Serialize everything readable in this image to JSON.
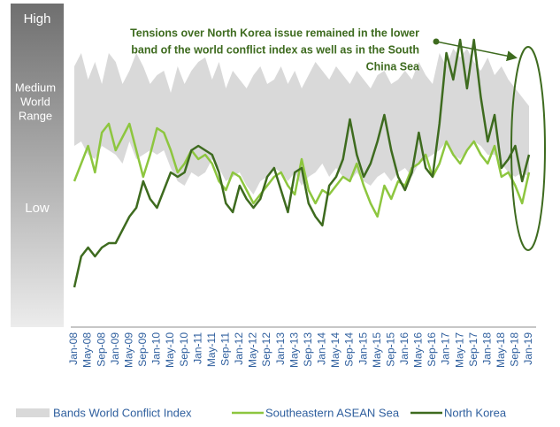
{
  "chart_data": {
    "type": "line",
    "annotation": [
      "Tensions over North Korea issue remained in the lower",
      "band of the world conflict index as well as in the South",
      "China Sea"
    ],
    "range_labels": {
      "high": "High",
      "medium": [
        "Medium",
        "World",
        "Range"
      ],
      "low": "Low"
    },
    "ylim": [
      0,
      350
    ],
    "categories": [
      "Jan-08",
      null,
      "May-08",
      null,
      "Sep-08",
      null,
      "Jan-09",
      null,
      "May-09",
      null,
      "Sep-09",
      null,
      "Jan-10",
      null,
      "May-10",
      null,
      "Sep-10",
      null,
      "Jan-11",
      null,
      "May-11",
      null,
      "Sep-11",
      null,
      "Jan-12",
      null,
      "May-12",
      null,
      "Sep-12",
      null,
      "Jan-13",
      null,
      "May-13",
      null,
      "Sep-13",
      null,
      "Jan-14",
      null,
      "May-14",
      null,
      "Sep-14",
      null,
      "Jan-15",
      null,
      "May-15",
      null,
      "Sep-15",
      null,
      "Jan-16",
      null,
      "May-16",
      null,
      "Sep-16",
      null,
      "Jan-17",
      null,
      "May-17",
      null,
      "Sep-17",
      null,
      "Jan-18",
      null,
      "May-18",
      null,
      "Sep-18",
      null,
      "Jan-19"
    ],
    "series": [
      {
        "name": "Bands World Conflict Index",
        "color": "#d9d9d9",
        "kind": "band",
        "values": [
          295,
          310,
          280,
          300,
          275,
          310,
          300,
          275,
          290,
          310,
          295,
          275,
          285,
          290,
          265,
          295,
          275,
          290,
          300,
          305,
          280,
          300,
          270,
          290,
          280,
          270,
          285,
          295,
          275,
          280,
          295,
          275,
          290,
          270,
          285,
          300,
          290,
          280,
          295,
          285,
          275,
          290,
          280,
          270,
          285,
          290,
          275,
          280,
          290,
          280,
          300,
          285,
          275,
          310,
          295,
          315,
          305,
          315,
          300,
          290,
          305,
          285,
          295,
          280,
          270,
          260,
          250
        ],
        "lower": [
          205,
          210,
          195,
          190,
          205,
          200,
          195,
          185,
          210,
          190,
          195,
          200,
          195,
          200,
          180,
          165,
          160,
          175,
          170,
          175,
          190,
          180,
          165,
          170,
          175,
          160,
          150,
          165,
          170,
          180,
          175,
          165,
          175,
          160,
          170,
          175,
          185,
          170,
          180,
          170,
          165,
          175,
          165,
          160,
          170,
          175,
          165,
          175,
          180,
          170,
          185,
          190,
          195,
          200,
          210,
          195,
          190,
          200,
          210,
          205,
          195,
          195,
          185,
          175,
          170,
          175,
          170
        ]
      },
      {
        "name": "Southeastern ASEAN Sea",
        "color": "#8dc63f",
        "values": [
          165,
          185,
          205,
          175,
          220,
          230,
          200,
          215,
          230,
          200,
          170,
          195,
          225,
          220,
          200,
          175,
          185,
          200,
          190,
          195,
          185,
          165,
          155,
          175,
          170,
          155,
          140,
          150,
          160,
          170,
          175,
          160,
          150,
          190,
          155,
          140,
          155,
          150,
          160,
          170,
          165,
          185,
          160,
          140,
          125,
          160,
          145,
          165,
          160,
          180,
          185,
          195,
          170,
          185,
          210,
          195,
          185,
          200,
          210,
          195,
          185,
          205,
          170,
          175,
          160,
          140,
          175
        ]
      },
      {
        "name": "North Korea",
        "color": "#3e6b1f",
        "values": [
          45,
          80,
          90,
          80,
          90,
          95,
          95,
          110,
          125,
          135,
          165,
          145,
          135,
          155,
          175,
          170,
          175,
          200,
          205,
          200,
          195,
          175,
          140,
          130,
          160,
          145,
          135,
          145,
          170,
          180,
          155,
          130,
          175,
          180,
          140,
          125,
          115,
          160,
          170,
          190,
          235,
          195,
          170,
          185,
          210,
          240,
          200,
          170,
          155,
          175,
          220,
          180,
          170,
          230,
          310,
          280,
          325,
          270,
          325,
          260,
          210,
          240,
          180,
          190,
          205,
          165,
          195
        ]
      }
    ]
  }
}
